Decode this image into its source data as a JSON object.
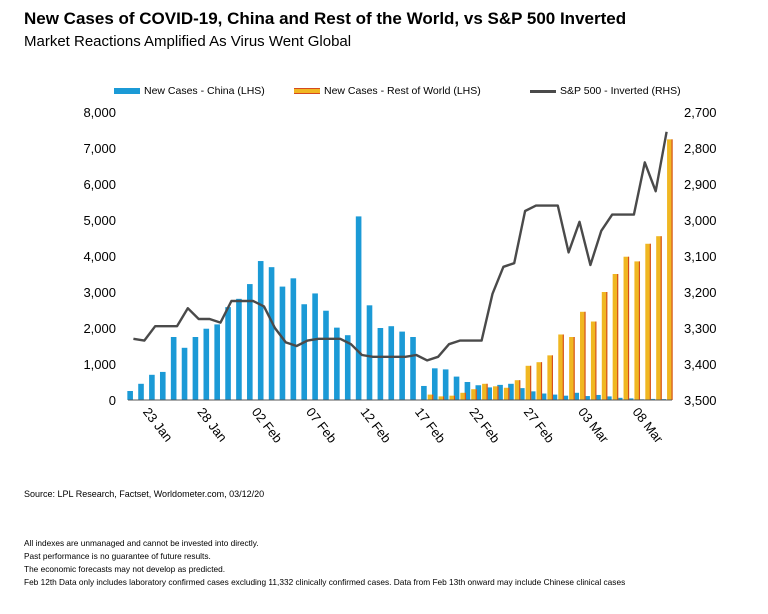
{
  "header": {
    "title": "New Cases of COVID-19, China and Rest of the World, vs S&P 500 Inverted",
    "subtitle": "Market Reactions Amplified As Virus Went Global"
  },
  "legend": {
    "china_label": "New Cases - China (LHS)",
    "row_label": "New Cases - Rest of World (LHS)",
    "sp_label": "S&P 500 - Inverted (RHS)"
  },
  "footer": {
    "source": "Source: LPL Research, Factset, Worldometer.com, 03/12/20",
    "notes": [
      "All indexes are unmanaged and cannot be invested into directly.",
      "Past performance is no guarantee of future results.",
      "The economic forecasts may not develop as predicted.",
      "Feb 12th Data only includes laboratory confirmed cases excluding 11,332 clinically confirmed cases. Data from Feb 13th onward may include Chinese clinical cases"
    ]
  },
  "colors": {
    "china": "#1b9ad6",
    "rest_of_world": "#f0b722",
    "rest_of_world_edge": "#d44a1e",
    "sp500": "#4a4a4a"
  },
  "chart_data": {
    "type": "bar",
    "x": [
      "22 Jan",
      "23 Jan",
      "24 Jan",
      "25 Jan",
      "26 Jan",
      "27 Jan",
      "28 Jan",
      "29 Jan",
      "30 Jan",
      "31 Jan",
      "01 Feb",
      "02 Feb",
      "03 Feb",
      "04 Feb",
      "05 Feb",
      "06 Feb",
      "07 Feb",
      "08 Feb",
      "09 Feb",
      "10 Feb",
      "11 Feb",
      "12 Feb",
      "13 Feb",
      "14 Feb",
      "15 Feb",
      "16 Feb",
      "17 Feb",
      "18 Feb",
      "19 Feb",
      "20 Feb",
      "21 Feb",
      "22 Feb",
      "23 Feb",
      "24 Feb",
      "25 Feb",
      "26 Feb",
      "27 Feb",
      "28 Feb",
      "29 Feb",
      "01 Mar",
      "02 Mar",
      "03 Mar",
      "04 Mar",
      "05 Mar",
      "06 Mar",
      "07 Mar",
      "08 Mar",
      "09 Mar",
      "10 Mar",
      "11 Mar"
    ],
    "x_ticks": [
      "23 Jan",
      "28 Jan",
      "02 Feb",
      "07 Feb",
      "12 Feb",
      "17 Feb",
      "22 Feb",
      "27 Feb",
      "03 Mar",
      "08 Mar"
    ],
    "y_left_ticks": [
      "0",
      "1,000",
      "2,000",
      "3,000",
      "4,000",
      "5,000",
      "6,000",
      "7,000",
      "8,000"
    ],
    "y_right_ticks": [
      "2,700",
      "2,800",
      "2,900",
      "3,000",
      "3,100",
      "3,200",
      "3,300",
      "3,400",
      "3,500"
    ],
    "ylim_left": [
      0,
      8000
    ],
    "ylim_right_inverted": [
      3500,
      2700
    ],
    "series": [
      {
        "name": "New Cases - China (LHS)",
        "type": "bar",
        "axis": "left",
        "values": [
          250,
          450,
          700,
          780,
          1750,
          1450,
          1750,
          1980,
          2100,
          2580,
          2810,
          3220,
          3860,
          3690,
          3150,
          3380,
          2660,
          2960,
          2480,
          2010,
          1800,
          5100,
          2630,
          2000,
          2050,
          1900,
          1750,
          390,
          880,
          850,
          650,
          500,
          410,
          350,
          420,
          450,
          330,
          240,
          180,
          150,
          120,
          200,
          110,
          140,
          100,
          60,
          45,
          20,
          30,
          25
        ]
      },
      {
        "name": "New Cases - Rest of World (LHS)",
        "type": "bar",
        "axis": "left",
        "values": [
          0,
          0,
          0,
          0,
          0,
          0,
          0,
          0,
          0,
          0,
          0,
          0,
          0,
          0,
          0,
          0,
          0,
          0,
          0,
          0,
          0,
          0,
          0,
          0,
          0,
          0,
          0,
          150,
          100,
          120,
          200,
          300,
          450,
          380,
          340,
          550,
          950,
          1050,
          1240,
          1820,
          1750,
          2450,
          2180,
          3000,
          3500,
          3980,
          3850,
          4340,
          4550,
          7240
        ]
      },
      {
        "name": "S&P 500 - Inverted (RHS)",
        "type": "line",
        "axis": "right",
        "values": [
          3330,
          3335,
          3295,
          3295,
          3295,
          3245,
          3275,
          3275,
          3285,
          3225,
          3225,
          3225,
          3240,
          3300,
          3340,
          3350,
          3335,
          3330,
          3330,
          3330,
          3345,
          3375,
          3380,
          3380,
          3380,
          3380,
          3375,
          3390,
          3380,
          3345,
          3335,
          3335,
          3335,
          3205,
          3130,
          3120,
          2975,
          2960,
          2960,
          2960,
          3090,
          3005,
          3125,
          3030,
          2985,
          2985,
          2985,
          2840,
          2920,
          2755
        ]
      }
    ]
  }
}
